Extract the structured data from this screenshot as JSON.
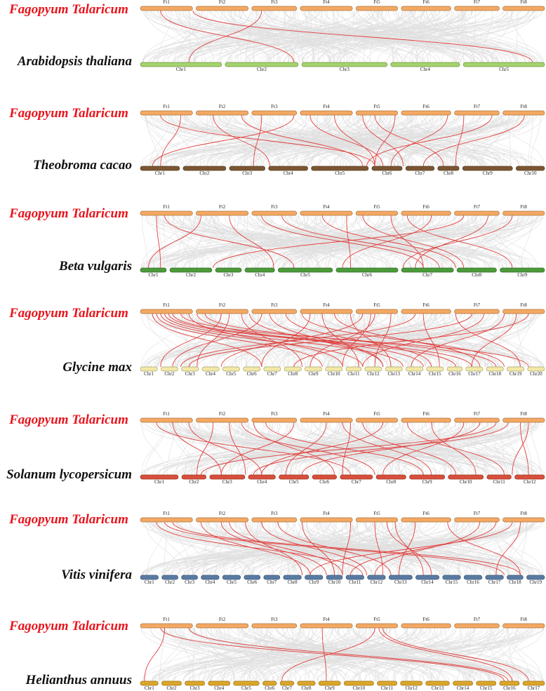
{
  "top_species": "Fagopyum Talaricum",
  "top_chromosomes": [
    "Ft1",
    "Ft2",
    "Ft3",
    "Ft4",
    "Ft5",
    "Ft6",
    "Ft7",
    "Ft8"
  ],
  "top_color": "#f4a862",
  "panels": [
    {
      "species": "Arabidopsis thaliana",
      "color": "#a3d36b",
      "chromosomes": [
        "Chr1",
        "Chr2",
        "Chr3",
        "Chr4",
        "Chr5"
      ],
      "links": [
        [
          0.05,
          0.38
        ],
        [
          0.3,
          0.12
        ],
        [
          0.13,
          0.97
        ]
      ]
    },
    {
      "species": "Theobroma cacao",
      "color": "#7b5632",
      "chromosomes": [
        "Chr1",
        "Chr2",
        "Chr3",
        "Chr4",
        "Chr5",
        "Chr6",
        "Chr7",
        "Chr8",
        "Chr9",
        "Chr10"
      ],
      "links": [
        [
          0.05,
          0.58
        ],
        [
          0.1,
          0.05
        ],
        [
          0.18,
          0.32
        ],
        [
          0.25,
          0.55
        ],
        [
          0.3,
          0.28
        ],
        [
          0.38,
          0.03
        ],
        [
          0.42,
          0.6
        ],
        [
          0.48,
          0.58
        ],
        [
          0.55,
          0.65
        ],
        [
          0.58,
          0.75
        ],
        [
          0.63,
          0.58
        ],
        [
          0.76,
          0.62
        ],
        [
          0.8,
          0.78
        ],
        [
          0.87,
          0.56
        ],
        [
          0.95,
          0.7
        ]
      ]
    },
    {
      "species": "Beta vulgaris",
      "color": "#4c9a3a",
      "chromosomes": [
        "Chr1",
        "Chr2",
        "Chr3",
        "Chr4",
        "Chr5",
        "Chr6",
        "Chr7",
        "Chr8",
        "Chr9"
      ],
      "links": [
        [
          0.04,
          0.05
        ],
        [
          0.06,
          0.38
        ],
        [
          0.15,
          0.02
        ],
        [
          0.22,
          0.33
        ],
        [
          0.3,
          0.7
        ],
        [
          0.35,
          0.74
        ],
        [
          0.45,
          0.78
        ],
        [
          0.51,
          0.52
        ],
        [
          0.55,
          0.8
        ],
        [
          0.62,
          0.7
        ],
        [
          0.66,
          0.92
        ],
        [
          0.72,
          0.5
        ],
        [
          0.8,
          0.18
        ],
        [
          0.86,
          0.68
        ],
        [
          0.92,
          0.65
        ]
      ]
    },
    {
      "species": "Glycine max",
      "color": "#f2e9a6",
      "chromosomes": [
        "Chr1",
        "Chr2",
        "Chr3",
        "Chr4",
        "Chr5",
        "Chr6",
        "Chr7",
        "Chr8",
        "Chr9",
        "Chr10",
        "Chr11",
        "Chr12",
        "Chr13",
        "Chr14",
        "Chr15",
        "Chr16",
        "Chr17",
        "Chr18",
        "Chr19",
        "Chr20"
      ],
      "links": [
        [
          0.03,
          0.3
        ],
        [
          0.04,
          0.45
        ],
        [
          0.05,
          0.55
        ],
        [
          0.06,
          0.65
        ],
        [
          0.07,
          0.78
        ],
        [
          0.08,
          0.82
        ],
        [
          0.1,
          0.96
        ],
        [
          0.12,
          0.5
        ],
        [
          0.14,
          0.7
        ],
        [
          0.16,
          0.88
        ],
        [
          0.2,
          0.05
        ],
        [
          0.22,
          0.14
        ],
        [
          0.25,
          0.4
        ],
        [
          0.27,
          0.6
        ],
        [
          0.3,
          0.08
        ],
        [
          0.32,
          0.6
        ],
        [
          0.36,
          0.72
        ],
        [
          0.4,
          0.9
        ],
        [
          0.42,
          0.3
        ],
        [
          0.45,
          0.54
        ],
        [
          0.48,
          0.84
        ],
        [
          0.52,
          0.62
        ],
        [
          0.55,
          0.2
        ],
        [
          0.57,
          0.5
        ],
        [
          0.58,
          0.42
        ],
        [
          0.62,
          0.58
        ],
        [
          0.68,
          0.1
        ],
        [
          0.7,
          0.74
        ],
        [
          0.78,
          0.94
        ],
        [
          0.82,
          0.12
        ],
        [
          0.85,
          0.55
        ],
        [
          0.9,
          0.67
        ],
        [
          0.93,
          0.82
        ],
        [
          0.96,
          0.38
        ]
      ]
    },
    {
      "species": "Solanum lycopersicum",
      "color": "#d94f3b",
      "chromosomes": [
        "Chr1",
        "Chr2",
        "Chr3",
        "Chr4",
        "Chr5",
        "Chr6",
        "Chr7",
        "Chr8",
        "Chr9",
        "Chr10",
        "Chr11",
        "Chr12"
      ],
      "links": [
        [
          0.04,
          0.52
        ],
        [
          0.08,
          0.2
        ],
        [
          0.12,
          0.3
        ],
        [
          0.18,
          0.14
        ],
        [
          0.22,
          0.26
        ],
        [
          0.25,
          0.58
        ],
        [
          0.28,
          0.48
        ],
        [
          0.31,
          0.7
        ],
        [
          0.38,
          0.2
        ],
        [
          0.46,
          0.36
        ],
        [
          0.5,
          0.72
        ],
        [
          0.52,
          0.5
        ],
        [
          0.55,
          0.78
        ],
        [
          0.6,
          0.3
        ],
        [
          0.66,
          0.9
        ],
        [
          0.72,
          0.83
        ],
        [
          0.8,
          0.6
        ],
        [
          0.84,
          0.4
        ],
        [
          0.88,
          0.15
        ],
        [
          0.91,
          0.28
        ],
        [
          0.94,
          0.96
        ],
        [
          0.96,
          0.92
        ]
      ]
    },
    {
      "species": "Vitis vinifera",
      "color": "#587ba3",
      "chromosomes": [
        "Chr1",
        "Chr2",
        "Chr3",
        "Chr4",
        "Chr5",
        "Chr6",
        "Chr7",
        "Chr8",
        "Chr9",
        "Chr10",
        "Chr11",
        "Chr12",
        "Chr13",
        "Chr14",
        "Chr15",
        "Chr16",
        "Chr17",
        "Chr18",
        "Chr19"
      ],
      "links": [
        [
          0.04,
          0.55
        ],
        [
          0.06,
          0.9
        ],
        [
          0.08,
          0.94
        ],
        [
          0.15,
          0.42
        ],
        [
          0.2,
          0.46
        ],
        [
          0.22,
          0.5
        ],
        [
          0.26,
          0.4
        ],
        [
          0.3,
          0.56
        ],
        [
          0.34,
          0.62
        ],
        [
          0.4,
          0.48
        ],
        [
          0.52,
          0.5
        ],
        [
          0.58,
          0.6
        ],
        [
          0.61,
          0.72
        ],
        [
          0.63,
          0.7
        ],
        [
          0.68,
          0.64
        ],
        [
          0.76,
          0.94
        ],
        [
          0.84,
          0.58
        ],
        [
          0.88,
          0.52
        ],
        [
          0.92,
          0.42
        ],
        [
          0.94,
          0.88
        ]
      ]
    },
    {
      "species": "Helianthus annuus",
      "color": "#dba628",
      "chromosomes": [
        "Chr1",
        "Chr2",
        "Chr3",
        "Chr4",
        "Chr5",
        "Chr6",
        "Chr7",
        "Chr8",
        "Chr9",
        "Chr10",
        "Chr11",
        "Chr12",
        "Chr13",
        "Chr14",
        "Chr15",
        "Chr16",
        "Chr17"
      ],
      "links": [
        [
          0.05,
          0.9
        ],
        [
          0.06,
          0.01
        ],
        [
          0.12,
          0.91
        ],
        [
          0.45,
          0.46
        ],
        [
          0.58,
          0.35
        ],
        [
          0.59,
          0.92
        ],
        [
          0.6,
          0.96
        ]
      ]
    }
  ],
  "link_color": "#e0403e",
  "background_link_color": "#d6d6d6"
}
